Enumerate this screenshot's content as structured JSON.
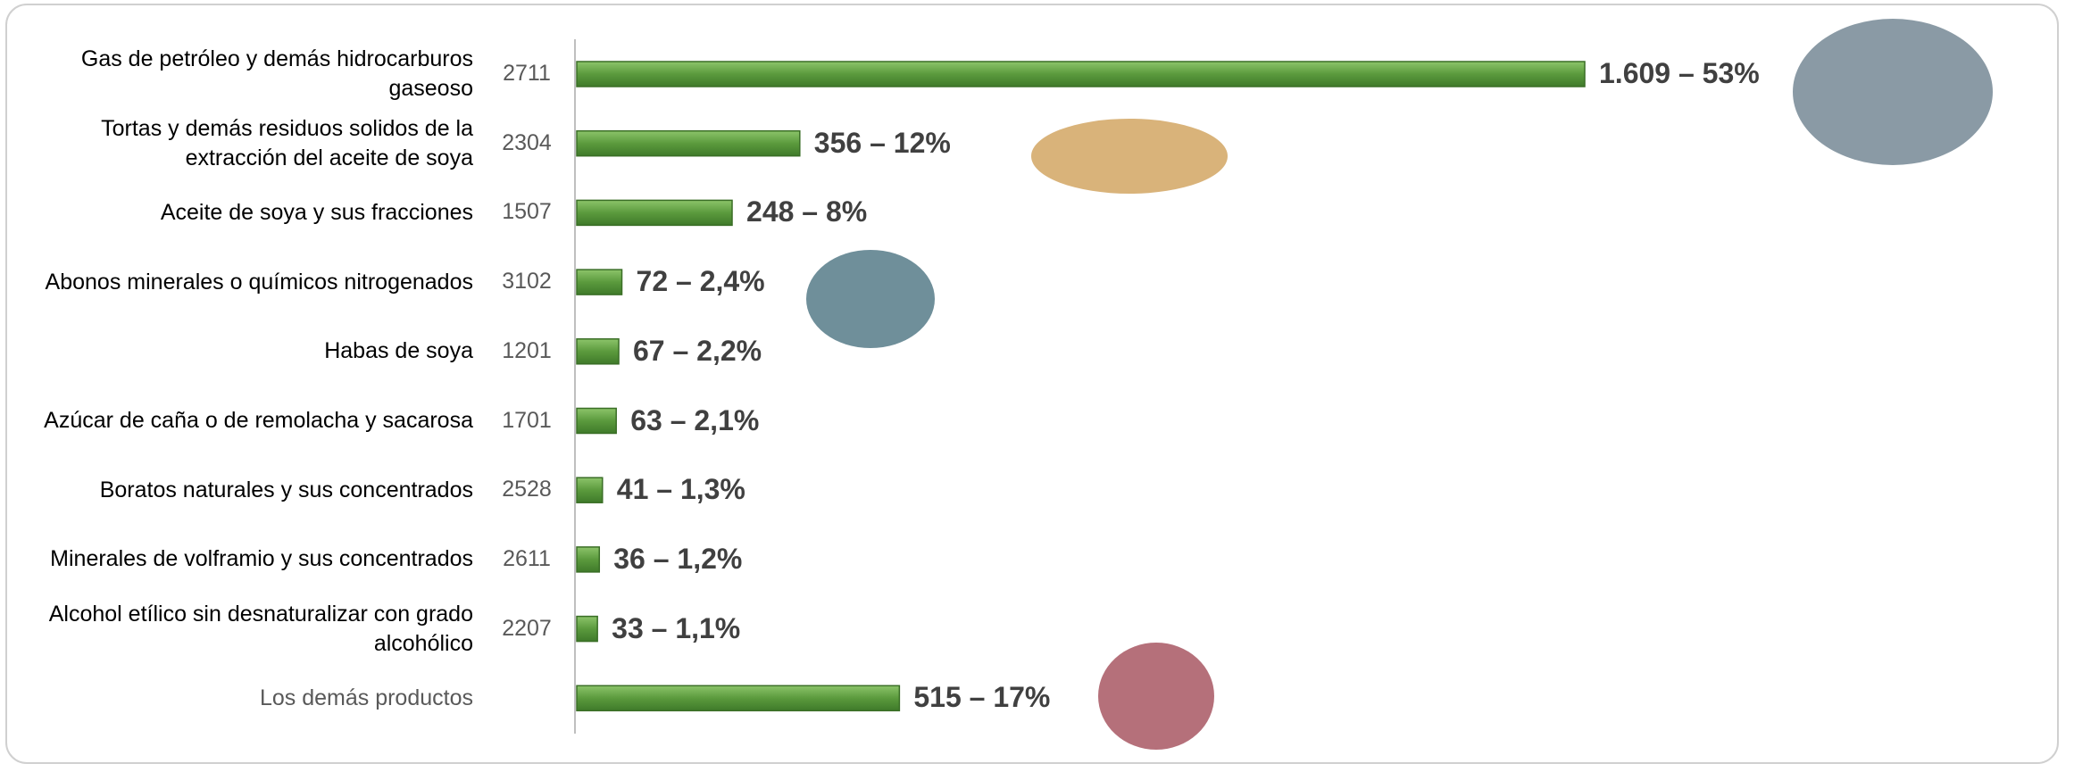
{
  "chart_data": {
    "type": "bar",
    "orientation": "horizontal",
    "categories": [
      "Gas de petróleo y demás hidrocarburos gaseoso",
      "Tortas y demás residuos solidos de la extracción del aceite de soya",
      "Aceite de soya y sus fracciones",
      "Abonos minerales o químicos nitrogenados",
      "Habas de soya",
      "Azúcar de caña o de remolacha y sacarosa",
      "Boratos naturales y sus concentrados",
      "Minerales de volframio y sus concentrados",
      "Alcohol etílico sin desnaturalizar con grado alcohólico",
      "Los demás productos"
    ],
    "codes": [
      "2711",
      "2304",
      "1507",
      "3102",
      "1201",
      "1701",
      "2528",
      "2611",
      "2207",
      null
    ],
    "values": [
      1609,
      356,
      248,
      72,
      67,
      63,
      41,
      36,
      33,
      515
    ],
    "value_labels": [
      "1.609 – 53%",
      "356 – 12%",
      "248 – 8%",
      "72 – 2,4%",
      "67 – 2,2%",
      "63 – 2,1%",
      "41 – 1,3%",
      "36 – 1,2%",
      "33 – 1,1%",
      "515 – 17%"
    ],
    "color": "#5b9a3d"
  }
}
